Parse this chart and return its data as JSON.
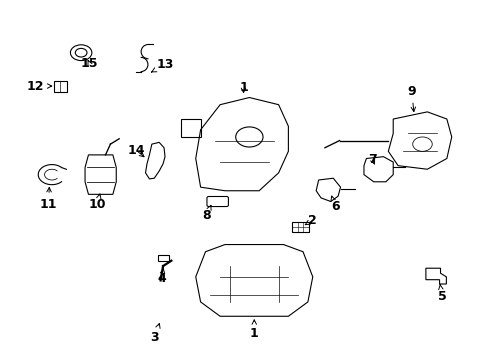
{
  "background_color": "#ffffff",
  "line_color": "#000000",
  "label_color": "#000000",
  "label_fontsize": 9,
  "figsize": [
    4.89,
    3.6
  ],
  "dpi": 100
}
